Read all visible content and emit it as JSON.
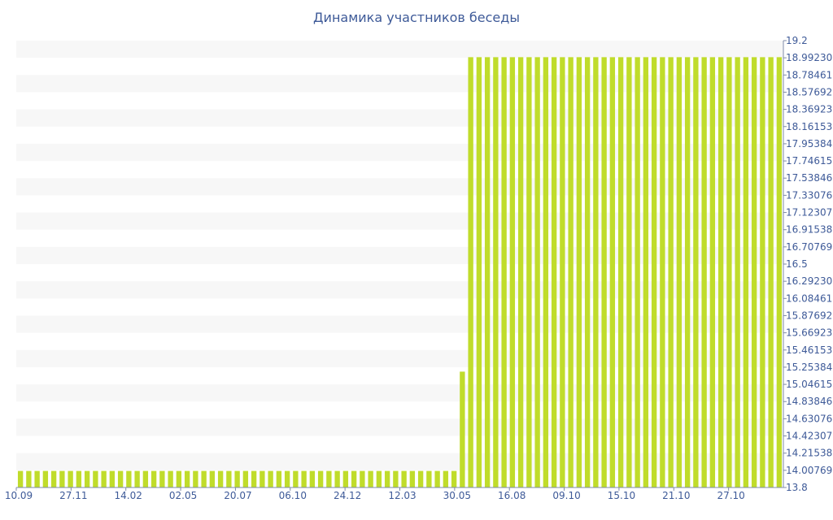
{
  "chart_data": {
    "type": "bar",
    "title": "Динамика участников беседы",
    "xlabel": "",
    "ylabel": "",
    "ylim": [
      13.8,
      19.2
    ],
    "y_axis_side": "right",
    "grid": "alternating horizontal bands",
    "bar_color": "#c0dc2b",
    "band_color": "#f7f7f7",
    "text_color": "#3e5a98",
    "y_ticks": [
      "19.2",
      "18.99230",
      "18.78461",
      "18.57692",
      "18.36923",
      "18.16153",
      "17.95384",
      "17.74615",
      "17.53846",
      "17.33076",
      "17.12307",
      "16.91538",
      "16.70769",
      "16.5",
      "16.29230",
      "16.08461",
      "15.87692",
      "15.66923",
      "15.46153",
      "15.25384",
      "15.04615",
      "14.83846",
      "14.63076",
      "14.42307",
      "14.21538",
      "14.00769",
      "13.8"
    ],
    "x_tick_labels": [
      "10.09",
      "27.11",
      "14.02",
      "02.05",
      "20.07",
      "06.10",
      "24.12",
      "12.03",
      "30.05",
      "16.08",
      "09.10",
      "15.10",
      "21.10",
      "27.10"
    ],
    "values": [
      14,
      14,
      14,
      14,
      14,
      14,
      14,
      14,
      14,
      14,
      14,
      14,
      14,
      14,
      14,
      14,
      14,
      14,
      14,
      14,
      14,
      14,
      14,
      14,
      14,
      14,
      14,
      14,
      14,
      14,
      14,
      14,
      14,
      14,
      14,
      14,
      14,
      14,
      14,
      14,
      14,
      14,
      14,
      14,
      14,
      14,
      14,
      14,
      14,
      14,
      14,
      14,
      14,
      15.2,
      19,
      19,
      19,
      19,
      19,
      19,
      19,
      19,
      19,
      19,
      19,
      19,
      19,
      19,
      19,
      19,
      19,
      19,
      19,
      19,
      19,
      19,
      19,
      19,
      19,
      19,
      19,
      19,
      19,
      19,
      19,
      19,
      19,
      19,
      19,
      19,
      19,
      19
    ]
  }
}
